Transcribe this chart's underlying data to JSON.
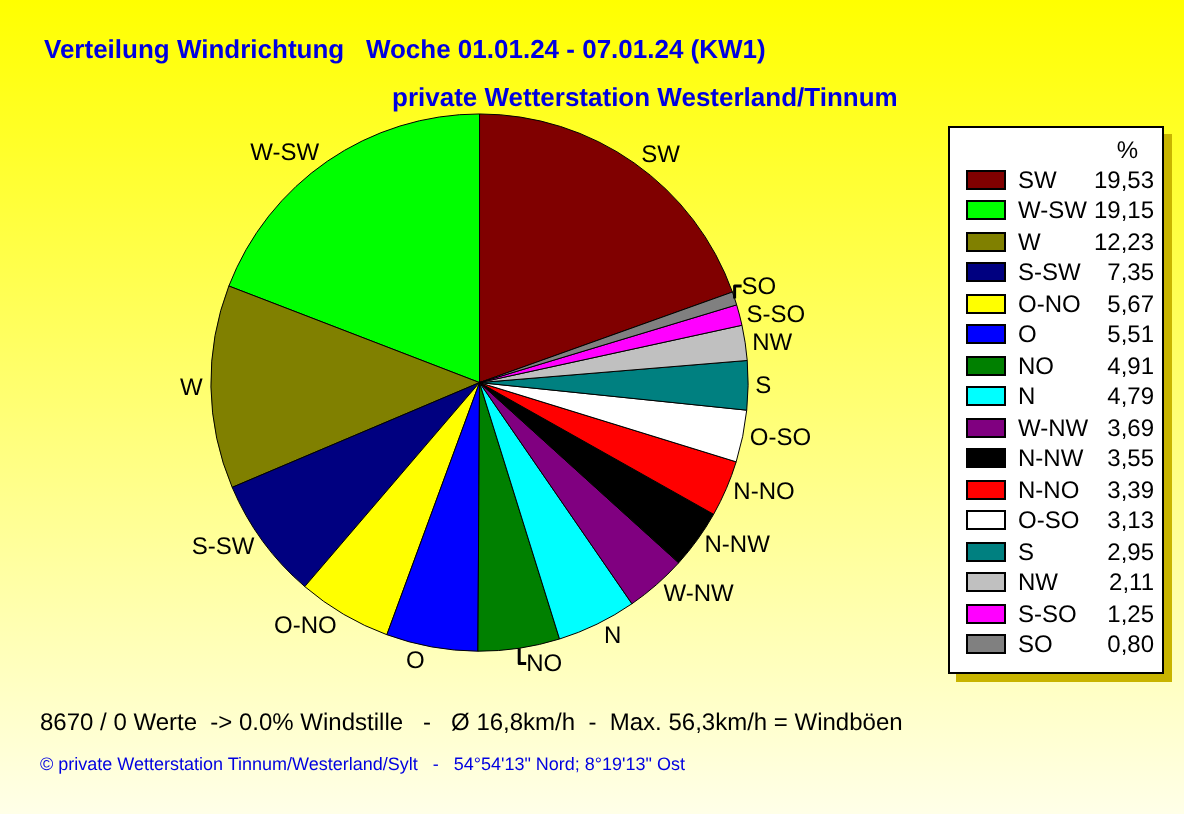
{
  "chart_data": {
    "type": "pie",
    "title": "Verteilung Windrichtung   Woche 01.01.24 - 07.01.24 (KW1)",
    "subtitle": "private Wetterstation Westerland/Tinnum",
    "legend_title": "%",
    "legend": "right",
    "categories": [
      "SW",
      "W-SW",
      "W",
      "S-SW",
      "O-NO",
      "O",
      "NO",
      "N",
      "W-NW",
      "N-NW",
      "N-NO",
      "O-SO",
      "S",
      "NW",
      "S-SO",
      "SO"
    ],
    "values": [
      19.53,
      19.15,
      12.23,
      7.35,
      5.67,
      5.51,
      4.91,
      4.79,
      3.69,
      3.55,
      3.39,
      3.13,
      2.95,
      2.11,
      1.25,
      0.8
    ],
    "value_labels": [
      "19,53",
      "19,15",
      "12,23",
      "7,35",
      "5,67",
      "5,51",
      "4,91",
      "4,79",
      "3,69",
      "3,55",
      "3,39",
      "3,13",
      "2,95",
      "2,11",
      "1,25",
      "0,80"
    ],
    "colors": [
      "#800000",
      "#00ff00",
      "#808000",
      "#000080",
      "#ffff00",
      "#0000ff",
      "#008000",
      "#00ffff",
      "#800080",
      "#000000",
      "#ff0000",
      "#ffffff",
      "#008080",
      "#c0c0c0",
      "#ff00ff",
      "#808080"
    ],
    "annotations": [
      "8670 / 0 Werte  -> 0.0% Windstille   -   Ø 16,8km/h  -  Max. 56,3km/h = Windböen",
      "© private Wetterstation Tinnum/Westerland/Sylt   -   54°54'13\" Nord; 8°19'13\" Ost"
    ]
  }
}
